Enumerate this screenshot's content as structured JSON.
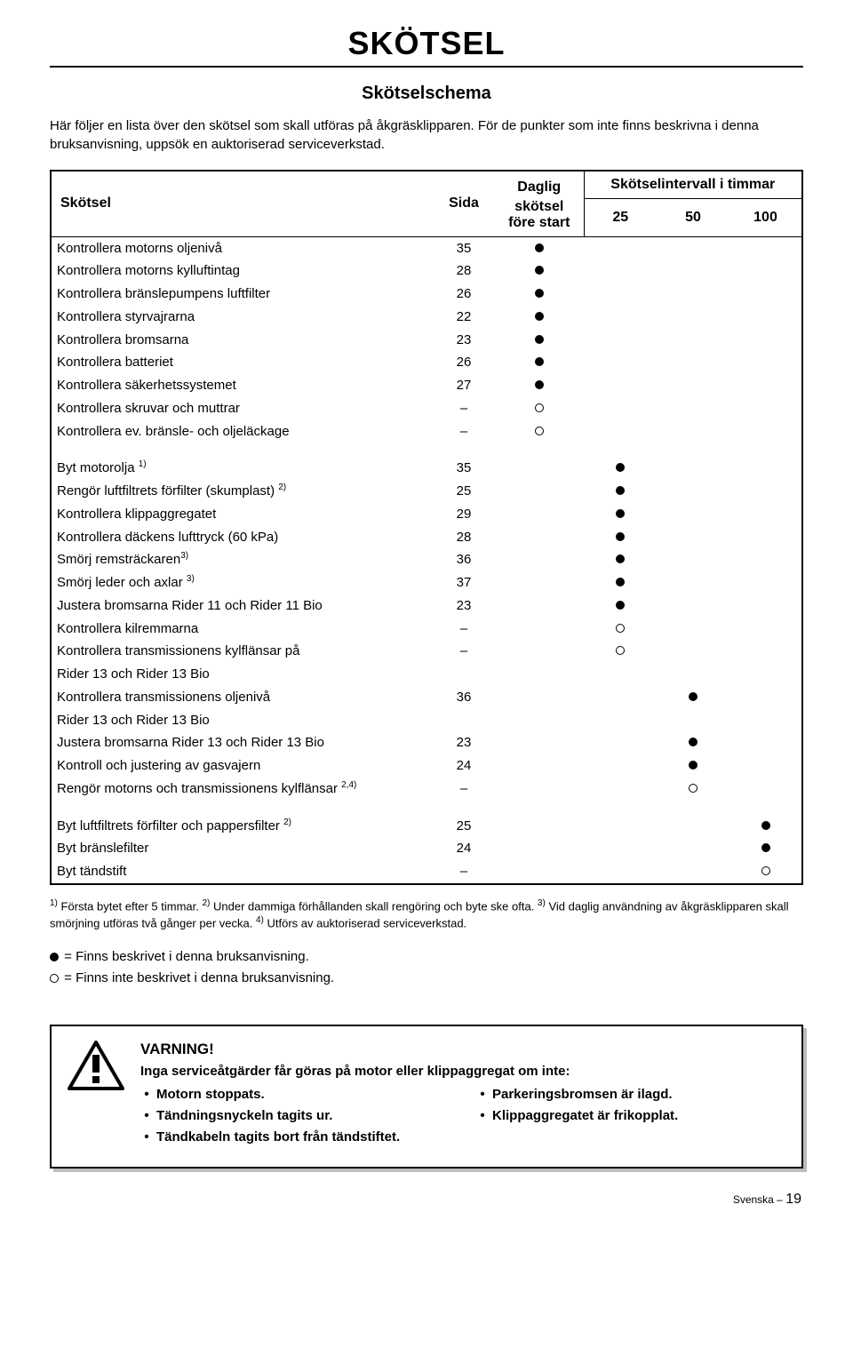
{
  "title": "SKÖTSEL",
  "subtitle": "Skötselschema",
  "intro": "Här följer en lista över den skötsel som skall utföras på åkgräsklipparen. För de punkter som inte finns beskrivna i denna bruksanvisning, uppsök en auktoriserad serviceverkstad.",
  "headers": {
    "skotsel": "Skötsel",
    "sida": "Sida",
    "daily_line1": "Daglig",
    "daily_line2": "skötsel",
    "daily_line3": "före start",
    "interval_title": "Skötselintervall i timmar",
    "interval_25": "25",
    "interval_50": "50",
    "interval_100": "100"
  },
  "colors": {
    "text": "#000000",
    "background": "#ffffff",
    "border": "#000000",
    "shadow": "#bdbdbd"
  },
  "groups": [
    {
      "rows": [
        {
          "label": "Kontrollera motorns oljenivå",
          "page": "35",
          "daily": "solid"
        },
        {
          "label": "Kontrollera motorns kylluftintag",
          "page": "28",
          "daily": "solid"
        },
        {
          "label": "Kontrollera bränslepumpens luftfilter",
          "page": "26",
          "daily": "solid"
        },
        {
          "label": "Kontrollera styrvajrarna",
          "page": "22",
          "daily": "solid"
        },
        {
          "label": "Kontrollera bromsarna",
          "page": "23",
          "daily": "solid"
        },
        {
          "label": "Kontrollera batteriet",
          "page": "26",
          "daily": "solid"
        },
        {
          "label": "Kontrollera säkerhetssystemet",
          "page": "27",
          "daily": "solid"
        },
        {
          "label": "Kontrollera skruvar och muttrar",
          "page": "–",
          "daily": "hollow"
        },
        {
          "label": "Kontrollera ev. bränsle- och oljeläckage",
          "page": "–",
          "daily": "hollow"
        }
      ]
    },
    {
      "rows": [
        {
          "label_html": "Byt motorolja <sup>1)</sup>",
          "page": "35",
          "i25": "solid"
        },
        {
          "label_html": "Rengör luftfiltrets förfilter (skumplast) <sup>2)</sup>",
          "page": "25",
          "i25": "solid"
        },
        {
          "label": "Kontrollera klippaggregatet",
          "page": "29",
          "i25": "solid"
        },
        {
          "label": "Kontrollera däckens lufttryck (60 kPa)",
          "page": "28",
          "i25": "solid"
        },
        {
          "label_html": "Smörj remsträckaren<sup>3)</sup>",
          "page": "36",
          "i25": "solid"
        },
        {
          "label_html": "Smörj leder och axlar <sup>3)</sup>",
          "page": "37",
          "i25": "solid"
        },
        {
          "label": "Justera bromsarna  Rider 11 och Rider 11 Bio",
          "page": "23",
          "i25": "solid"
        },
        {
          "label": "Kontrollera kilremmarna",
          "page": "–",
          "i25": "hollow"
        },
        {
          "label": "Kontrollera transmissionens kylflänsar  på",
          "page": "–",
          "i25": "hollow"
        },
        {
          "label": "Rider 13 och Rider 13 Bio",
          "page": ""
        },
        {
          "label": "Kontrollera transmissionens oljenivå",
          "page": "36",
          "i50": "solid"
        },
        {
          "label": "Rider 13 och Rider 13 Bio",
          "page": ""
        },
        {
          "label": "Justera bromsarna  Rider 13 och Rider 13 Bio",
          "page": "23",
          "i50": "solid"
        },
        {
          "label": "Kontroll och justering av gasvajern",
          "page": "24",
          "i50": "solid"
        },
        {
          "label_html": "Rengör motorns och transmissionens kylflänsar <sup>2,4)</sup>",
          "page": "–",
          "i50": "hollow"
        }
      ]
    },
    {
      "rows": [
        {
          "label_html": "Byt luftfiltrets förfilter och pappersfilter <sup>2)</sup>",
          "page": "25",
          "i100": "solid"
        },
        {
          "label": "Byt bränslefilter",
          "page": "24",
          "i100": "solid"
        },
        {
          "label": "Byt tändstift",
          "page": "–",
          "i100": "hollow"
        }
      ]
    }
  ],
  "footnotes_html": "<sup>1)</sup> Första bytet efter 5 timmar. <sup>2)</sup> Under dammiga förhållanden skall rengöring och byte ske ofta. <sup>3)</sup> Vid daglig användning av åkgräsklipparen skall smörjning utföras två gånger per vecka. <sup>4)</sup> Utförs av auktoriserad serviceverkstad.",
  "legend": {
    "solid": "= Finns beskrivet i denna bruksanvisning.",
    "hollow": "= Finns inte beskrivet i denna bruksanvisning."
  },
  "warning": {
    "title": "VARNING!",
    "lead": "Inga serviceåtgärder får göras på motor eller klippaggregat om inte:",
    "left": [
      "Motorn stoppats.",
      "Tändningsnyckeln tagits ur.",
      "Tändkabeln tagits bort från tändstiftet."
    ],
    "right": [
      "Parkeringsbromsen är ilagd.",
      "Klippaggregatet är frikopplat."
    ]
  },
  "footer": {
    "lang": "Svenska –",
    "page": "19"
  }
}
